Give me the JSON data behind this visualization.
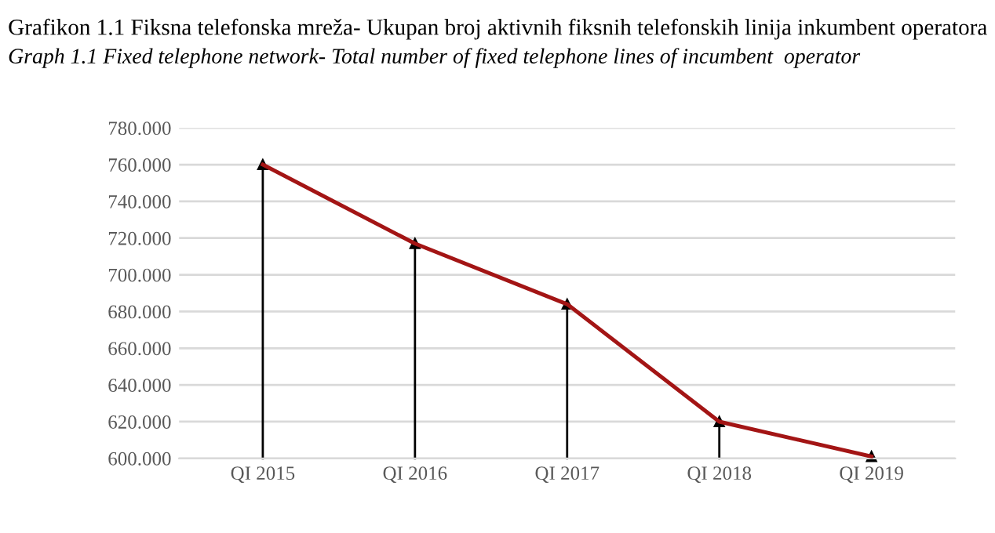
{
  "chart_data": {
    "type": "line",
    "title": "Grafikon 1.1 Fiksna telefonska mreža- Ukupan broj aktivnih fiksnih telefonskih linija inkumbent operatora",
    "subtitle": "Graph 1.1 Fixed telephone network- Total number of fixed telephone lines of incumbent  operator",
    "categories": [
      "QI 2015",
      "QI 2016",
      "QI 2017",
      "QI 2018",
      "QI 2019"
    ],
    "series": [
      {
        "color": "#a31515",
        "values": [
          760,
          717,
          684,
          620,
          601
        ]
      },
      {
        "type": "lollipop",
        "marker": "triangle",
        "color": "#000000",
        "values": [
          760,
          717,
          684,
          620,
          601
        ]
      }
    ],
    "ylim": [
      600,
      780
    ],
    "yticks": [
      {
        "value": 600,
        "label": "600.000"
      },
      {
        "value": 620,
        "label": "620.000"
      },
      {
        "value": 640,
        "label": "640.000"
      },
      {
        "value": 660,
        "label": "660.000"
      },
      {
        "value": 680,
        "label": "680.000"
      },
      {
        "value": 700,
        "label": "700.000"
      },
      {
        "value": 720,
        "label": "720.000"
      },
      {
        "value": 740,
        "label": "740.000"
      },
      {
        "value": 760,
        "label": "760.000"
      },
      {
        "value": 780,
        "label": "780.000"
      }
    ],
    "grid": "y",
    "marker": "none",
    "line_style": "solid"
  }
}
